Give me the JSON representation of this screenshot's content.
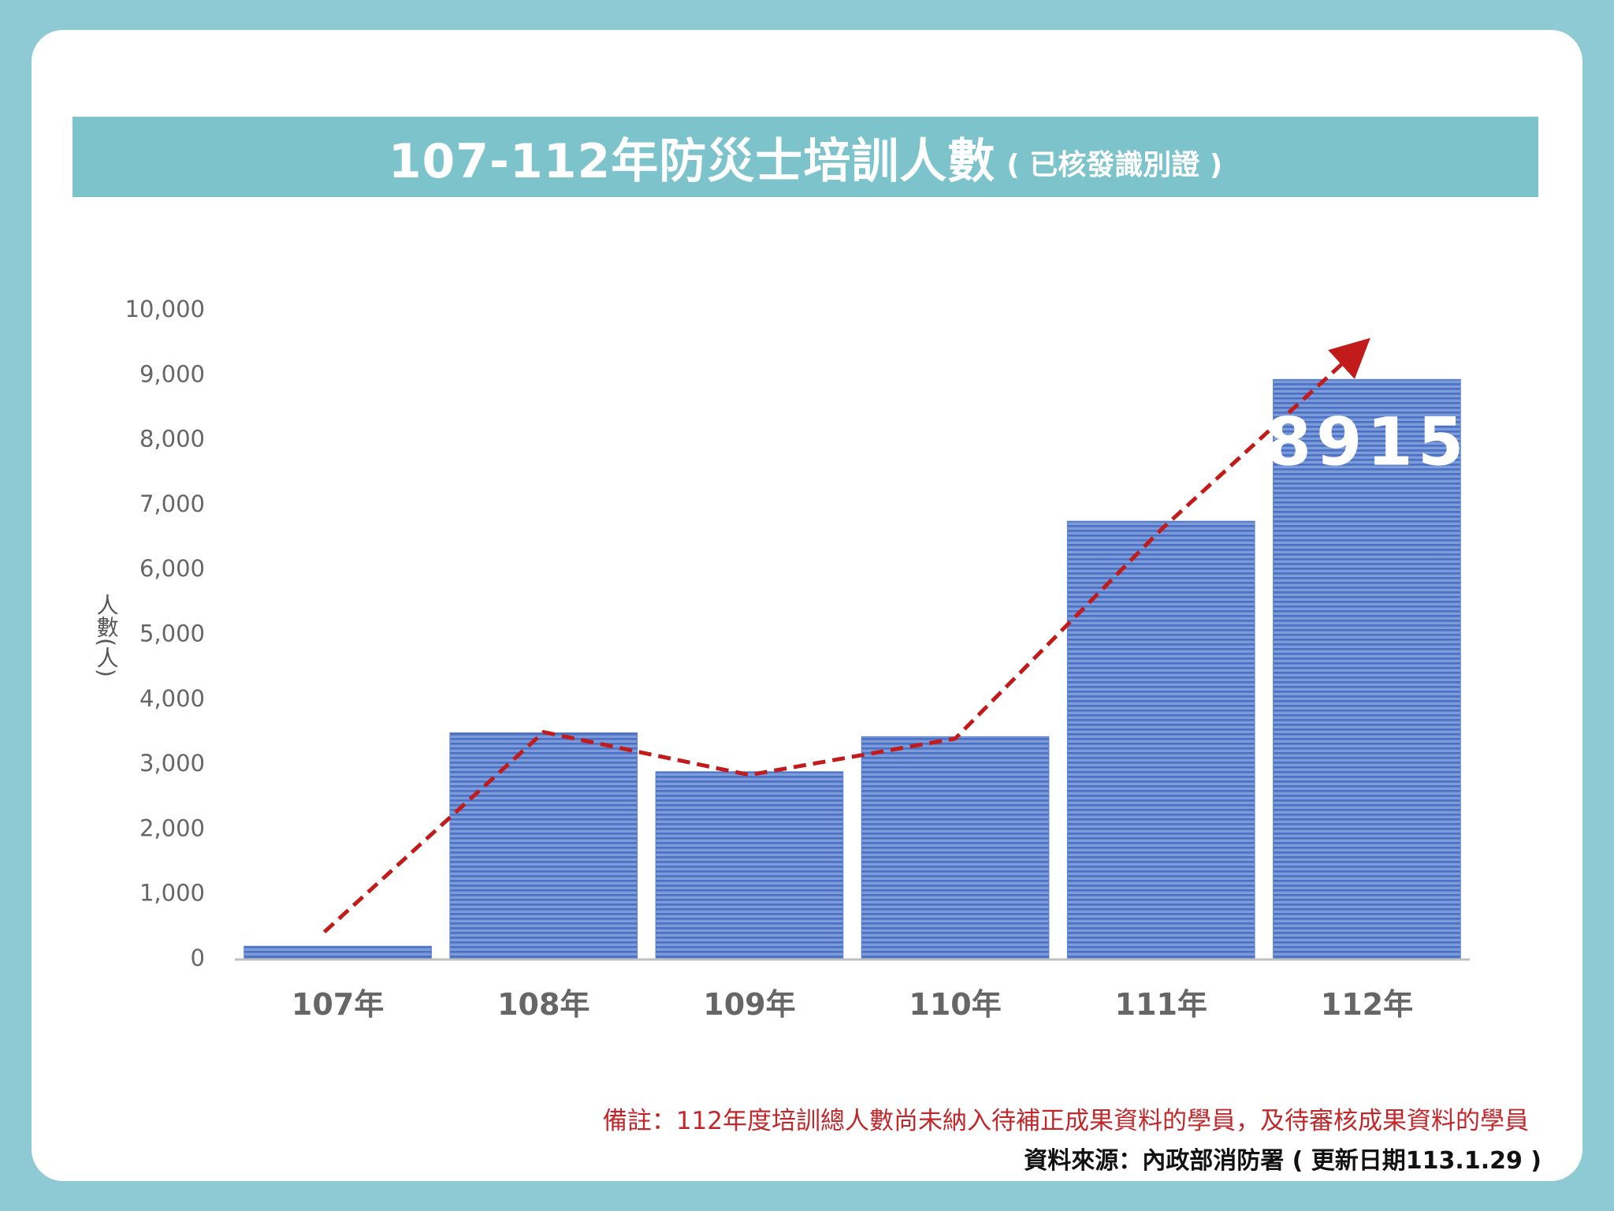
{
  "title": {
    "main": "107-112年防災士培訓人數",
    "sub": "( 已核發識別證 )"
  },
  "chart_data": {
    "type": "bar",
    "categories": [
      "107年",
      "108年",
      "109年",
      "110年",
      "111年",
      "112年"
    ],
    "values": [
      180,
      3470,
      2870,
      3410,
      6730,
      8915
    ],
    "ylabel": "人數(人)",
    "ylim": [
      0,
      10000
    ],
    "yticks": [
      0,
      1000,
      2000,
      3000,
      4000,
      5000,
      6000,
      7000,
      8000,
      9000,
      10000
    ],
    "ytick_labels": [
      "0",
      "1,000",
      "2,000",
      "3,000",
      "4,000",
      "5,000",
      "6,000",
      "7,000",
      "8,000",
      "9,000",
      "10,000"
    ],
    "trend_line": [
      400,
      3480,
      2820,
      3380,
      6600,
      9350
    ],
    "annotations": [
      {
        "category": "112年",
        "text": "8915"
      }
    ],
    "grid": false,
    "colors": {
      "bar_fill": "#6f93d6",
      "bar_stripe": "#4f74c4",
      "trend": "#c21b1b",
      "axis_text": "#666666"
    }
  },
  "footer": {
    "note": "備註：112年度培訓總人數尚未納入待補正成果資料的學員，及待審核成果資料的學員",
    "source": "資料來源：內政部消防署 ( 更新日期113.1.29 )"
  }
}
